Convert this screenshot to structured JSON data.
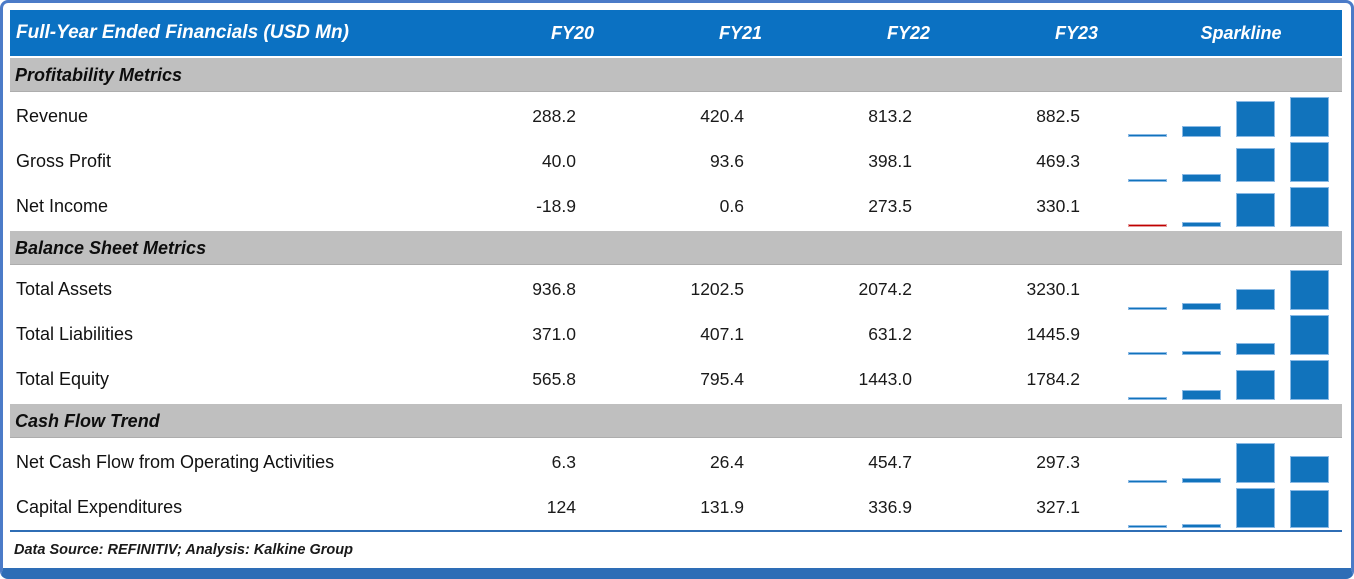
{
  "title": "Full-Year Ended Financials (USD Mn)",
  "footer": "Data Source: REFINITIV; Analysis: Kalkine Group",
  "colors": {
    "header_bg": "#0b71c2",
    "section_bg": "#bfbfbf",
    "sparkline_bar": "#1173bc",
    "sparkline_negative": "#c00000",
    "frame_border": "#4b7bc8",
    "bottom_bar": "#2e6db6",
    "divider": "#2f6eb5"
  },
  "chart_data": {
    "type": "table",
    "title": "Full-Year Ended Financials (USD Mn)",
    "columns": [
      "FY20",
      "FY21",
      "FY22",
      "FY23"
    ],
    "sparkline_column": "Sparkline",
    "sparkline_style": "column sparkline per row, bars scaled between row min and max, negative values shown in red",
    "sections": [
      {
        "label": "Profitability Metrics",
        "rows": [
          {
            "label": "Revenue",
            "values": [
              "288.2",
              "420.4",
              "813.2",
              "882.5"
            ]
          },
          {
            "label": "Gross Profit",
            "values": [
              "40.0",
              "93.6",
              "398.1",
              "469.3"
            ]
          },
          {
            "label": "Net Income",
            "values": [
              "-18.9",
              "0.6",
              "273.5",
              "330.1"
            ]
          }
        ]
      },
      {
        "label": "Balance Sheet Metrics",
        "rows": [
          {
            "label": "Total Assets",
            "values": [
              "936.8",
              "1202.5",
              "2074.2",
              "3230.1"
            ]
          },
          {
            "label": "Total Liabilities",
            "values": [
              "371.0",
              "407.1",
              "631.2",
              "1445.9"
            ]
          },
          {
            "label": "Total Equity",
            "values": [
              "565.8",
              "795.4",
              "1443.0",
              "1784.2"
            ]
          }
        ]
      },
      {
        "label": "Cash Flow Trend",
        "rows": [
          {
            "label": "Net Cash Flow from Operating Activities",
            "values": [
              "6.3",
              "26.4",
              "454.7",
              "297.3"
            ]
          },
          {
            "label": "Capital Expenditures",
            "values": [
              "124",
              "131.9",
              "336.9",
              "327.1"
            ]
          }
        ]
      }
    ]
  }
}
